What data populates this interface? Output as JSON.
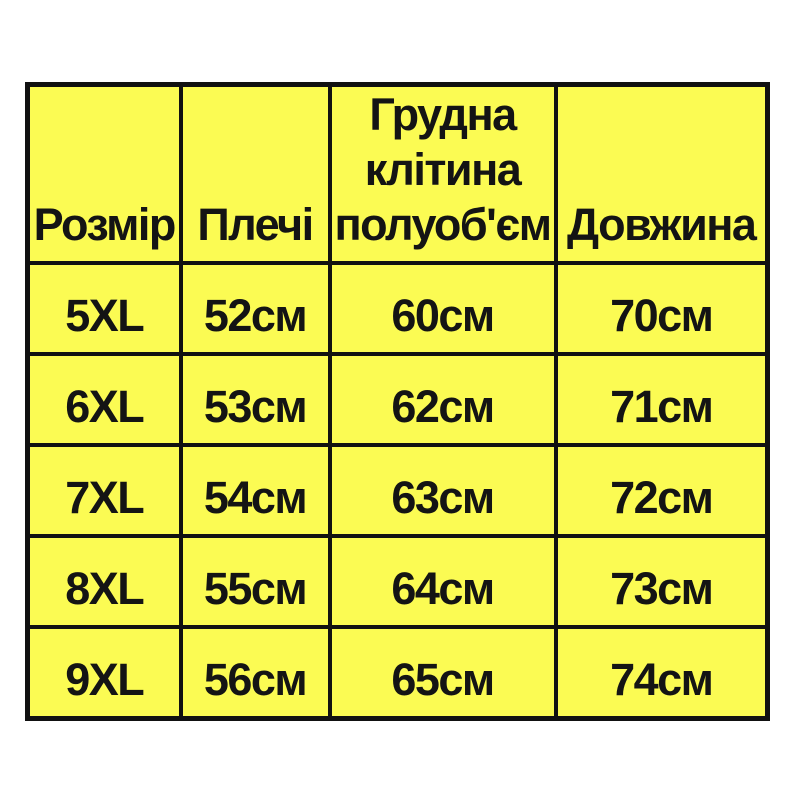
{
  "style": {
    "page_background": "#ffffff",
    "table_background": "#fbfb53",
    "grid_border_color": "#111111",
    "text_color": "#141414"
  },
  "chart_data": {
    "type": "table",
    "title": "",
    "columns": [
      "Розмір",
      "Плечі",
      "Грудна клітина полуоб'єм",
      "Довжина"
    ],
    "rows": [
      [
        "5XL",
        "52см",
        "60см",
        "70см"
      ],
      [
        "6XL",
        "53см",
        "62см",
        "71см"
      ],
      [
        "7XL",
        "54см",
        "63см",
        "72см"
      ],
      [
        "8XL",
        "55см",
        "64см",
        "73см"
      ],
      [
        "9XL",
        "56см",
        "65см",
        "74см"
      ]
    ],
    "units": "см",
    "layout_hints": {
      "header_position": "top",
      "grid": "on",
      "header_multiline_column_index": 2
    }
  }
}
